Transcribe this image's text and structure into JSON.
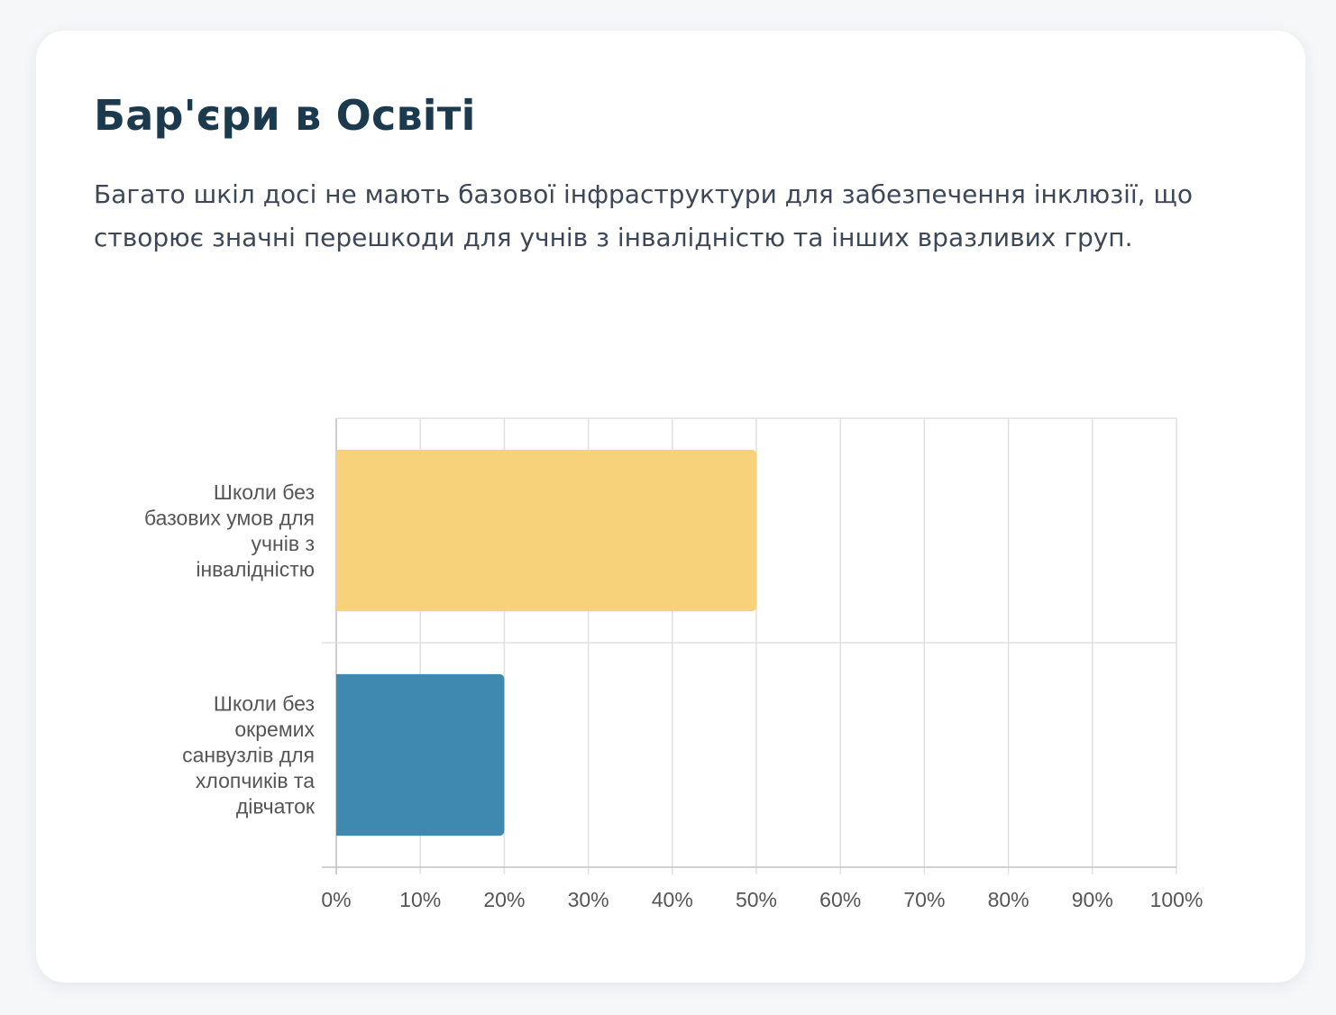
{
  "card": {
    "title": "Бар'єри в Освіті",
    "description": "Багато шкіл досі не мають базової інфраструктури для забезпечення інклюзії, що створює значні перешкоди для учнів з інвалідністю та інших вразливих груп."
  },
  "chart_data": {
    "type": "bar",
    "orientation": "horizontal",
    "categories": [
      [
        "Школи без",
        "базових умов для",
        "учнів з",
        "інвалідністю"
      ],
      [
        "Школи без",
        "окремих",
        "санвузлів для",
        "хлопчиків та",
        "дівчаток"
      ]
    ],
    "values": [
      50,
      20
    ],
    "colors": [
      "#f7d27b",
      "#3f89b0"
    ],
    "xlim": [
      0,
      100
    ],
    "xticks": [
      0,
      10,
      20,
      30,
      40,
      50,
      60,
      70,
      80,
      90,
      100
    ],
    "tick_suffix": "%",
    "grid": true,
    "legend": "none",
    "title": "",
    "xlabel": "",
    "ylabel": ""
  }
}
